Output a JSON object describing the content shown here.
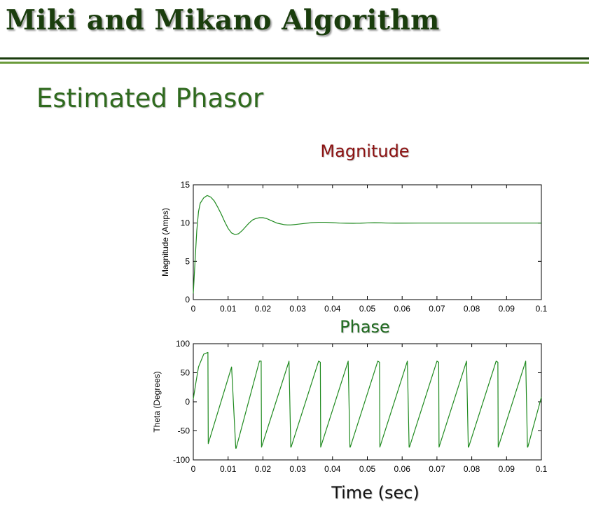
{
  "slide": {
    "title": "Miki and Mikano Algorithm",
    "subtitle": "Estimated Phasor",
    "x_caption": "Time (sec)"
  },
  "colors": {
    "title": "#1a3d0d",
    "subtitle": "#2f6a1e",
    "magnitude_heading": "#8b1010",
    "phase_heading": "#1f6a1f",
    "line": "#1f8a1f"
  },
  "chart_data": [
    {
      "type": "line",
      "title": "Magnitude",
      "xlabel": "",
      "ylabel": "Magnitude (Amps)",
      "xlim": [
        0,
        0.1
      ],
      "ylim": [
        0,
        15
      ],
      "xticks": [
        "0",
        "0.01",
        "0.02",
        "0.03",
        "0.04",
        "0.05",
        "0.06",
        "0.07",
        "0.08",
        "0.09",
        "0.1"
      ],
      "yticks": [
        "0",
        "5",
        "10",
        "15"
      ],
      "grid": false,
      "series": [
        {
          "x": [
            0,
            0.0005,
            0.001,
            0.0015,
            0.002,
            0.003,
            0.004,
            0.005,
            0.006,
            0.007,
            0.008,
            0.009,
            0.01,
            0.011,
            0.012,
            0.013,
            0.014,
            0.015,
            0.016,
            0.017,
            0.018,
            0.019,
            0.02,
            0.021,
            0.022,
            0.023,
            0.024,
            0.025,
            0.026,
            0.027,
            0.028,
            0.029,
            0.03,
            0.032,
            0.034,
            0.036,
            0.038,
            0.04,
            0.042,
            0.044,
            0.046,
            0.048,
            0.05,
            0.052,
            0.054,
            0.056,
            0.058,
            0.06,
            0.065,
            0.07,
            0.075,
            0.08,
            0.085,
            0.09,
            0.095,
            0.1
          ],
          "y": [
            0.8,
            5,
            9,
            11.5,
            12.6,
            13.3,
            13.6,
            13.4,
            12.9,
            12.1,
            11.2,
            10.2,
            9.3,
            8.7,
            8.5,
            8.6,
            9.0,
            9.5,
            10.0,
            10.4,
            10.6,
            10.7,
            10.7,
            10.6,
            10.4,
            10.2,
            10.0,
            9.9,
            9.8,
            9.75,
            9.75,
            9.8,
            9.85,
            9.95,
            10.05,
            10.1,
            10.1,
            10.05,
            10.0,
            9.98,
            9.97,
            9.98,
            10.02,
            10.04,
            10.03,
            10.0,
            9.99,
            9.99,
            10.0,
            10.0,
            10.0,
            10.0,
            10.0,
            10.0,
            10.0,
            10.0
          ]
        }
      ]
    },
    {
      "type": "line",
      "title": "Phase",
      "xlabel": "Time (sec)",
      "ylabel": "Theta (Degrees)",
      "xlim": [
        0,
        0.1
      ],
      "ylim": [
        -100,
        100
      ],
      "xticks": [
        "0",
        "0.01",
        "0.02",
        "0.03",
        "0.04",
        "0.05",
        "0.06",
        "0.07",
        "0.08",
        "0.09",
        "0.1"
      ],
      "yticks": [
        "-100",
        "-50",
        "0",
        "50",
        "100"
      ],
      "grid": false,
      "series": [
        {
          "x": [
            0,
            0.0008,
            0.0015,
            0.003,
            0.0042,
            0.0043,
            0.011,
            0.0122,
            0.0123,
            0.019,
            0.0195,
            0.0196,
            0.0275,
            0.028,
            0.0281,
            0.036,
            0.0365,
            0.0366,
            0.0445,
            0.045,
            0.0451,
            0.053,
            0.0535,
            0.0536,
            0.0615,
            0.062,
            0.0621,
            0.07,
            0.0705,
            0.0706,
            0.0785,
            0.079,
            0.0791,
            0.087,
            0.0875,
            0.0876,
            0.0955,
            0.096,
            0.0961,
            0.1
          ],
          "y": [
            5,
            35,
            60,
            82,
            85,
            -72,
            60,
            -80,
            -80,
            70,
            70,
            -78,
            70,
            -78,
            -78,
            70,
            68,
            -78,
            70,
            -78,
            -78,
            70,
            68,
            -78,
            70,
            -78,
            -78,
            70,
            68,
            -78,
            70,
            -78,
            -78,
            70,
            68,
            -78,
            70,
            -78,
            -78,
            8
          ]
        }
      ]
    }
  ]
}
